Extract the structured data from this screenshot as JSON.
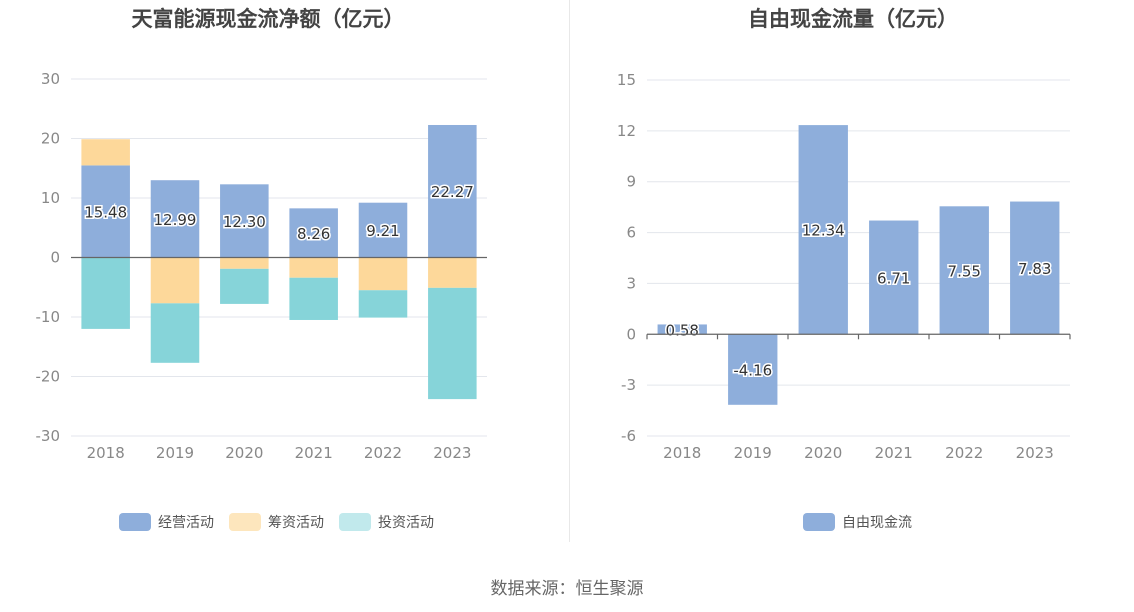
{
  "source_text": "数据来源：恒生聚源",
  "chart_data": [
    {
      "type": "bar",
      "stacked": true,
      "title": "天富能源现金流净额（亿元）",
      "categories": [
        "2018",
        "2019",
        "2020",
        "2021",
        "2022",
        "2023"
      ],
      "ylim": [
        -30,
        30
      ],
      "yticks": [
        -30,
        -20,
        -10,
        0,
        10,
        20,
        30
      ],
      "grid": true,
      "legend_position": "bottom-center",
      "series": [
        {
          "name": "经营活动",
          "color": "#8eaedb",
          "legend_color": "#8eaedb",
          "values": [
            15.48,
            12.99,
            12.3,
            8.26,
            9.21,
            22.27
          ],
          "labels": [
            "15.48",
            "12.99",
            "12.30",
            "8.26",
            "9.21",
            "22.27"
          ]
        },
        {
          "name": "筹资活动",
          "color": "#fdd89a",
          "legend_color": "#fde6bd",
          "values": [
            4.4,
            -7.7,
            -1.9,
            -3.4,
            -5.5,
            -5.1
          ]
        },
        {
          "name": "投资活动",
          "color": "#86d4d9",
          "legend_color": "#c1e9ec",
          "values": [
            -12.0,
            -10.0,
            -5.9,
            -7.1,
            -4.6,
            -18.7
          ]
        }
      ]
    },
    {
      "type": "bar",
      "title": "自由现金流量（亿元）",
      "categories": [
        "2018",
        "2019",
        "2020",
        "2021",
        "2022",
        "2023"
      ],
      "ylim": [
        -6,
        15
      ],
      "yticks": [
        -6,
        -3,
        0,
        3,
        6,
        9,
        12,
        15
      ],
      "grid": true,
      "legend_position": "bottom-center",
      "series": [
        {
          "name": "自由现金流",
          "color": "#8eaedb",
          "legend_color": "#8eaedb",
          "values": [
            0.58,
            -4.16,
            12.34,
            6.71,
            7.55,
            7.83
          ],
          "labels": [
            "0.58",
            "-4.16",
            "12.34",
            "6.71",
            "7.55",
            "7.83"
          ]
        }
      ]
    }
  ]
}
